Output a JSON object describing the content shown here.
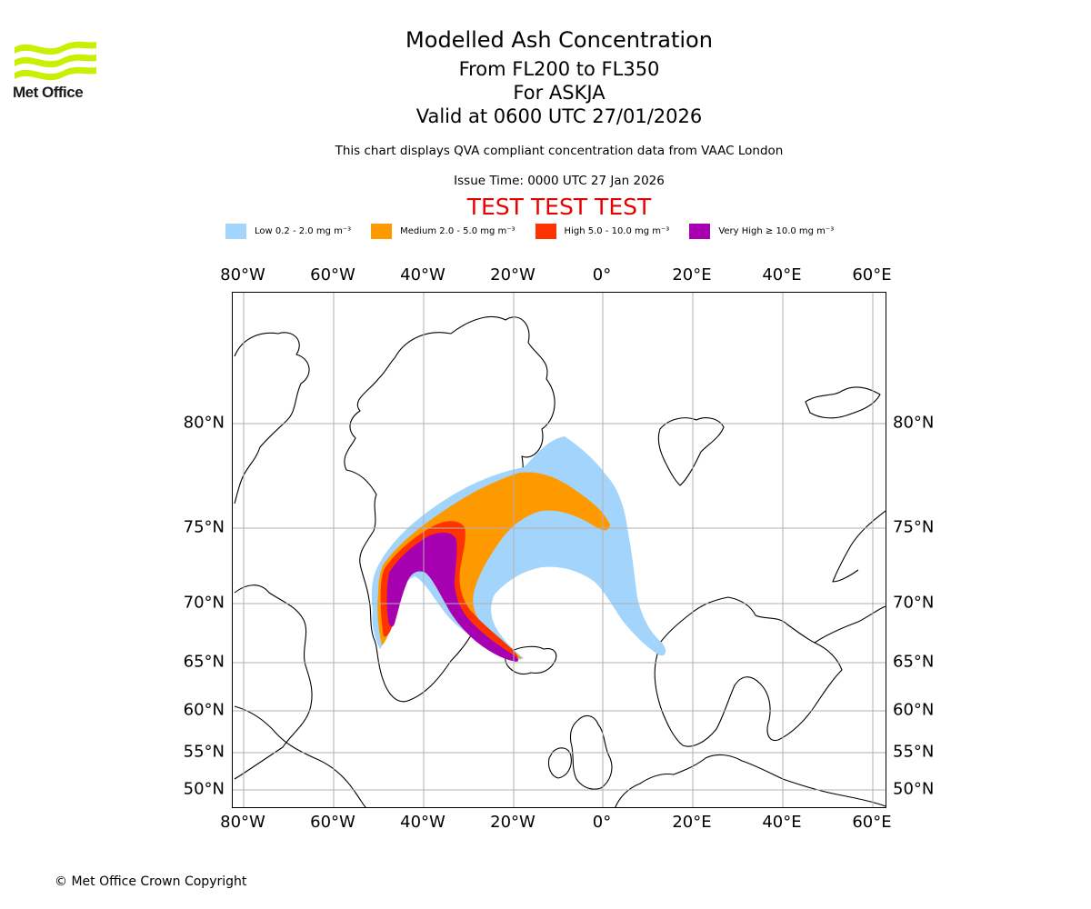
{
  "header": {
    "logo_text": "Met Office",
    "title": "Modelled Ash Concentration",
    "level_range": "From FL200 to FL350",
    "volcano": "For ASKJA",
    "valid_time": "Valid at 0600 UTC 27/01/2026",
    "description": "This chart displays QVA compliant concentration data from VAAC London",
    "issue_time": "Issue Time: 0000 UTC 27 Jan 2026",
    "test_banner": "TEST TEST TEST"
  },
  "legend": [
    {
      "label": "Low 0.2 - 2.0 mg m⁻³",
      "color": "#a3d4fb"
    },
    {
      "label": "Medium 2.0 - 5.0 mg m⁻³",
      "color": "#ff9900"
    },
    {
      "label": "High 5.0 - 10.0 mg m⁻³",
      "color": "#ff3300"
    },
    {
      "label": "Very High  ≥  10.0 mg m⁻³",
      "color": "#a600b0"
    }
  ],
  "axes": {
    "longitude_ticks": [
      "80°W",
      "60°W",
      "40°W",
      "20°W",
      "0°",
      "20°E",
      "40°E",
      "60°E"
    ],
    "latitude_ticks": [
      "80°N",
      "75°N",
      "70°N",
      "65°N",
      "60°N",
      "55°N",
      "50°N"
    ]
  },
  "colors": {
    "land_outline": "#000000",
    "gridline": "#b0b0b0",
    "logo_green": "#c8f000"
  },
  "footer": {
    "copyright": "© Met Office Crown Copyright"
  }
}
